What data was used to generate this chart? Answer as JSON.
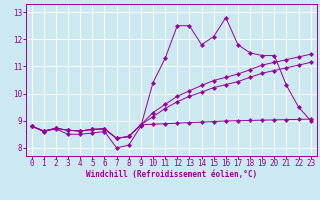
{
  "xlabel": "Windchill (Refroidissement éolien,°C)",
  "bg_color": "#cce8f0",
  "line_color": "#990099",
  "grid_color": "#ffffff",
  "x_values": [
    0,
    1,
    2,
    3,
    4,
    5,
    6,
    7,
    8,
    9,
    10,
    11,
    12,
    13,
    14,
    15,
    16,
    17,
    18,
    19,
    20,
    21,
    22,
    23
  ],
  "line1_y": [
    8.8,
    8.6,
    8.7,
    8.5,
    8.5,
    8.55,
    8.6,
    8.0,
    8.1,
    8.8,
    10.4,
    11.3,
    12.5,
    12.5,
    11.8,
    12.1,
    12.8,
    11.8,
    11.5,
    11.4,
    11.4,
    10.3,
    9.5,
    9.0
  ],
  "line2_y": [
    8.8,
    8.62,
    8.72,
    8.65,
    8.62,
    8.68,
    8.7,
    8.35,
    8.42,
    8.85,
    9.15,
    9.45,
    9.7,
    9.9,
    10.05,
    10.22,
    10.33,
    10.44,
    10.6,
    10.75,
    10.85,
    10.95,
    11.05,
    11.15
  ],
  "line3_y": [
    8.8,
    8.62,
    8.72,
    8.65,
    8.62,
    8.68,
    8.7,
    8.35,
    8.42,
    8.85,
    9.3,
    9.6,
    9.9,
    10.1,
    10.3,
    10.48,
    10.6,
    10.72,
    10.88,
    11.05,
    11.15,
    11.25,
    11.35,
    11.45
  ],
  "line4_y": [
    8.8,
    8.62,
    8.72,
    8.65,
    8.62,
    8.68,
    8.7,
    8.35,
    8.42,
    8.85,
    8.87,
    8.89,
    8.91,
    8.93,
    8.95,
    8.97,
    8.99,
    9.0,
    9.01,
    9.02,
    9.03,
    9.04,
    9.05,
    9.06
  ],
  "ylim": [
    7.7,
    13.3
  ],
  "xlim": [
    -0.5,
    23.5
  ],
  "yticks": [
    8,
    9,
    10,
    11,
    12,
    13
  ],
  "xticks": [
    0,
    1,
    2,
    3,
    4,
    5,
    6,
    7,
    8,
    9,
    10,
    11,
    12,
    13,
    14,
    15,
    16,
    17,
    18,
    19,
    20,
    21,
    22,
    23
  ],
  "tick_fontsize": 5.5,
  "xlabel_fontsize": 5.5,
  "linewidth": 0.7,
  "markersize": 2.2
}
